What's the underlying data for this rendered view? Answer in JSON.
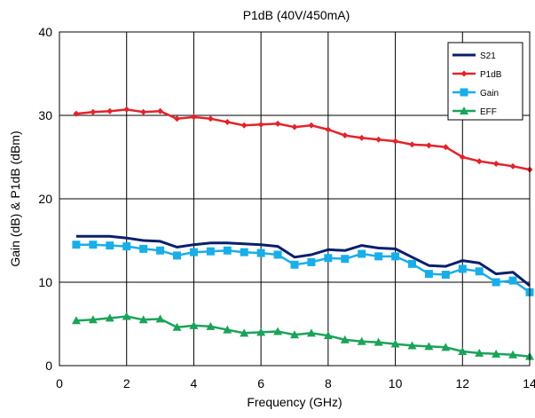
{
  "chart_data": {
    "type": "line",
    "title": "P1dB (40V/450mA)",
    "xlabel": "Frequency (GHz)",
    "ylabel": "Gain (dB) & P1dB (dBm)",
    "xlim": [
      0,
      14
    ],
    "ylim": [
      0,
      40
    ],
    "xticks": [
      0,
      2,
      4,
      6,
      8,
      10,
      12,
      14
    ],
    "yticks": [
      0,
      10,
      20,
      30,
      40
    ],
    "grid": true,
    "legend_position": "top-right",
    "x": [
      0.5,
      1.0,
      1.5,
      2.0,
      2.5,
      3.0,
      3.5,
      4.0,
      4.5,
      5.0,
      5.5,
      6.0,
      6.5,
      7.0,
      7.5,
      8.0,
      8.5,
      9.0,
      9.5,
      10.0,
      10.5,
      11.0,
      11.5,
      12.0,
      12.5,
      13.0,
      13.5,
      14.0
    ],
    "series": [
      {
        "name": "S21",
        "color": "#0a1f6b",
        "marker": "none",
        "values": [
          15.5,
          15.5,
          15.5,
          15.3,
          15.0,
          14.9,
          14.2,
          14.5,
          14.7,
          14.7,
          14.6,
          14.5,
          14.3,
          13.0,
          13.3,
          13.9,
          13.8,
          14.4,
          14.1,
          14.0,
          13.0,
          12.0,
          11.9,
          12.6,
          12.3,
          11.0,
          11.2,
          9.6
        ]
      },
      {
        "name": "P1dB",
        "color": "#e3232b",
        "marker": "diamond",
        "values": [
          30.2,
          30.4,
          30.5,
          30.7,
          30.4,
          30.5,
          29.6,
          29.8,
          29.6,
          29.2,
          28.8,
          28.9,
          29.0,
          28.6,
          28.8,
          28.3,
          27.6,
          27.3,
          27.1,
          26.9,
          26.5,
          26.4,
          26.2,
          25.0,
          24.5,
          24.2,
          23.9,
          23.5
        ]
      },
      {
        "name": "Gain",
        "color": "#19aee8",
        "marker": "square",
        "values": [
          14.5,
          14.5,
          14.4,
          14.3,
          14.0,
          13.8,
          13.2,
          13.6,
          13.7,
          13.8,
          13.6,
          13.5,
          13.3,
          12.1,
          12.4,
          12.9,
          12.8,
          13.4,
          13.1,
          13.1,
          12.2,
          11.0,
          10.9,
          11.6,
          11.3,
          10.0,
          10.2,
          8.8
        ]
      },
      {
        "name": "EFF",
        "color": "#1ba35a",
        "marker": "triangle",
        "values": [
          5.4,
          5.5,
          5.7,
          5.9,
          5.5,
          5.6,
          4.6,
          4.8,
          4.7,
          4.3,
          3.9,
          4.0,
          4.1,
          3.7,
          3.9,
          3.6,
          3.1,
          2.9,
          2.8,
          2.6,
          2.4,
          2.3,
          2.2,
          1.7,
          1.5,
          1.4,
          1.3,
          1.1
        ]
      }
    ]
  }
}
